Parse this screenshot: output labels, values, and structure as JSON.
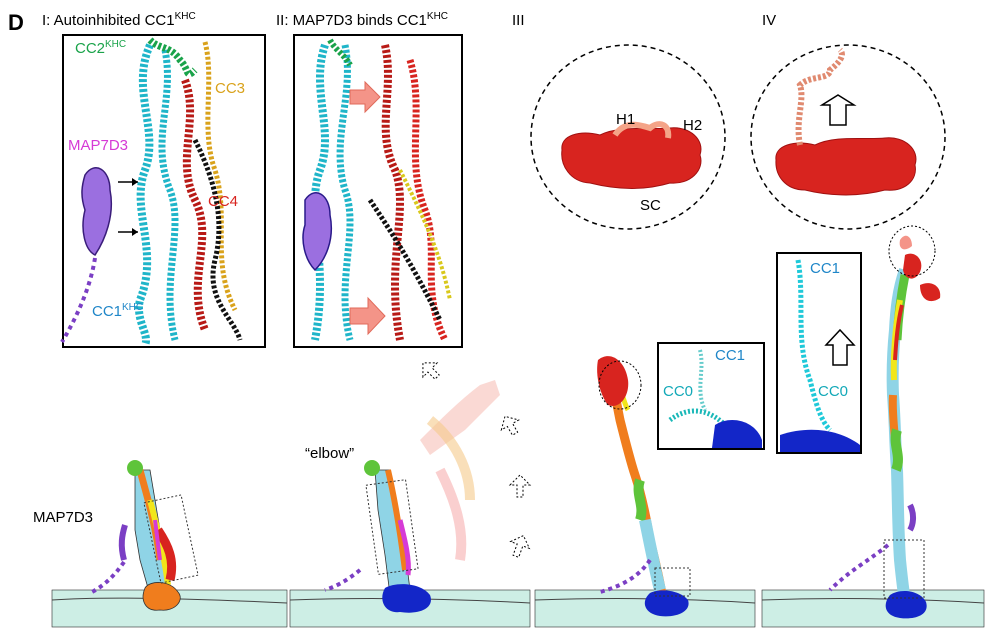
{
  "panel_letter": "D",
  "headings": {
    "stage1": "I: Autoinhibited CC1",
    "stage1_sup": "KHC",
    "stage2": "II: MAP7D3 binds CC1",
    "stage2_sup": "KHC",
    "stage3": "III",
    "stage4": "IV"
  },
  "inset1_labels": {
    "cc2": "CC2",
    "cc2_sup": "KHC",
    "cc3": "CC3",
    "map7d3": "MAP7D3",
    "cc4": "CC4",
    "cc1": "CC1",
    "cc1_sup": "KHC"
  },
  "circle3_labels": {
    "h1": "H1",
    "h2": "H2",
    "sc": "SC"
  },
  "zoom3_labels": {
    "cc1": "CC1",
    "cc0": "CC0"
  },
  "zoom4_labels": {
    "cc1": "CC1",
    "cc0": "CC0"
  },
  "stage_labels": {
    "map7d3": "MAP7D3",
    "elbow": "“elbow”"
  },
  "colors": {
    "cyan": "#1fb5c9",
    "green": "#1aa34a",
    "gold": "#d9a21b",
    "magenta": "#d63ad6",
    "red": "#d8241f",
    "purple": "#7b3fc4",
    "blue": "#1326c8",
    "salmon": "#f49488",
    "orange": "#f07d1d",
    "yellow": "#f2e61a",
    "microtubule": "#bfe9e0"
  }
}
